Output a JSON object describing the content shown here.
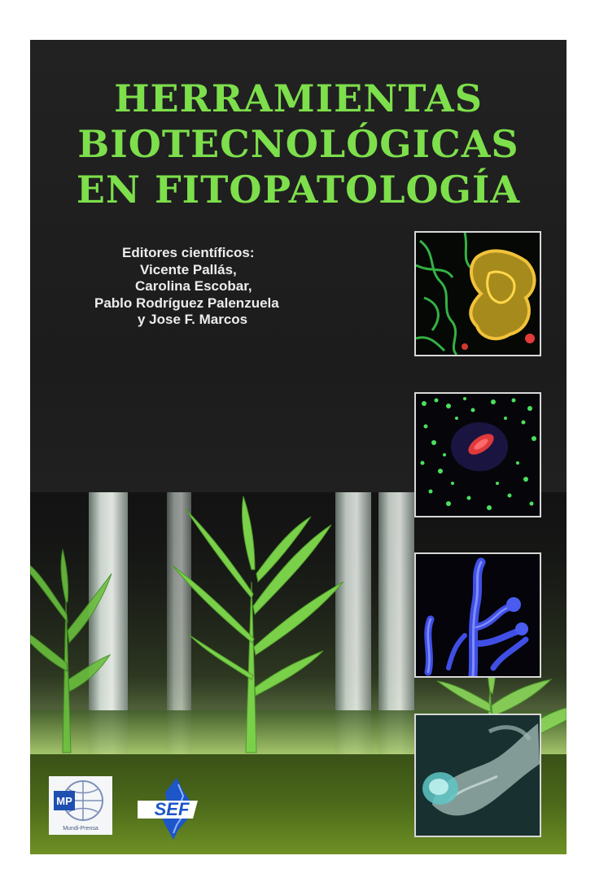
{
  "cover": {
    "title_lines": [
      "HERRAMIENTAS",
      "BIOTECNOLÓGICAS",
      "EN FITOPATOLOGÍA"
    ],
    "editors_heading": "Editores científicos:",
    "editors": [
      "Vicente Pallás,",
      "Carolina Escobar,",
      "Pablo Rodríguez Palenzuela",
      "y Jose F. Marcos"
    ]
  },
  "logos": {
    "left_logo_text": "MP",
    "left_logo_caption": "Mundi-Prensa",
    "right_logo_text": "SEF"
  },
  "colors": {
    "title": "#7ddf4b",
    "background": "#222222",
    "editors_text": "#ececec"
  }
}
